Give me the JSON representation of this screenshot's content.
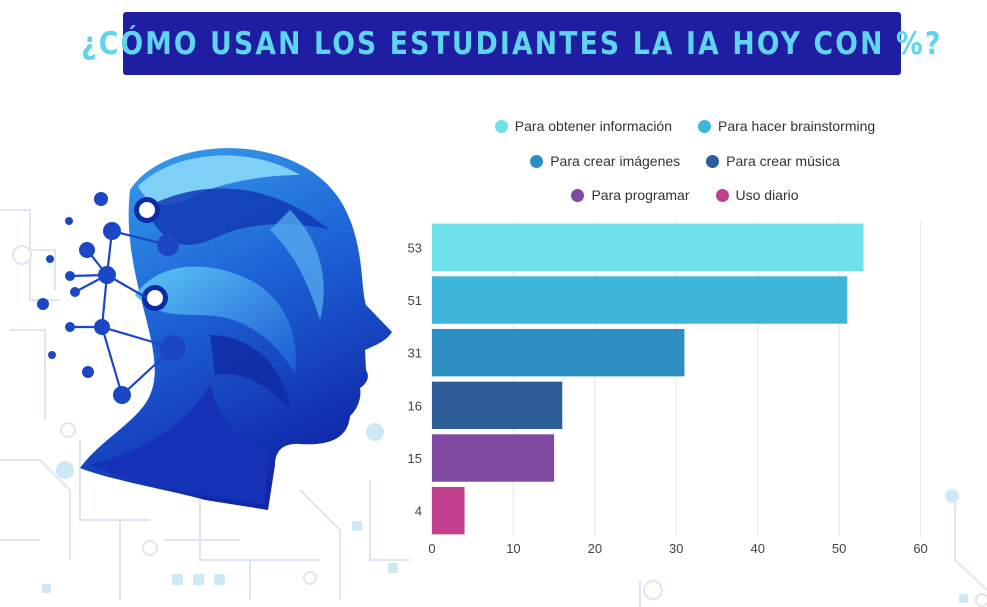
{
  "title": "¿CÓMO USAN LOS ESTUDIANTES LA IA HOY CON %?",
  "legend": {
    "rows": [
      [
        {
          "label": "Para obtener información",
          "color": "#6ee2ea"
        },
        {
          "label": "Para hacer brainstorming",
          "color": "#3db6d8"
        }
      ],
      [
        {
          "label": "Para crear imágenes",
          "color": "#2d8ec1"
        },
        {
          "label": "Para crear música",
          "color": "#2e5e97"
        }
      ],
      [
        {
          "label": "Para programar",
          "color": "#7f49a2"
        },
        {
          "label": "Uso diario",
          "color": "#c1408c"
        }
      ]
    ]
  },
  "chart_data": {
    "type": "bar",
    "orientation": "horizontal",
    "title": "¿CÓMO USAN LOS ESTUDIANTES LA IA HOY CON %?",
    "categories": [
      "53",
      "51",
      "31",
      "16",
      "15",
      "4"
    ],
    "series": [
      {
        "name": "Para obtener información",
        "value": 53,
        "color": "#6ee2ea"
      },
      {
        "name": "Para hacer brainstorming",
        "value": 51,
        "color": "#3db6d8"
      },
      {
        "name": "Para crear imágenes",
        "value": 31,
        "color": "#2d8ec1"
      },
      {
        "name": "Para crear música",
        "value": 16,
        "color": "#2e5e97"
      },
      {
        "name": "Para programar",
        "value": 15,
        "color": "#7f49a2"
      },
      {
        "name": "Uso diario",
        "value": 4,
        "color": "#c1408c"
      }
    ],
    "xlim": [
      0,
      63
    ],
    "xticks": [
      0,
      10,
      20,
      30,
      40,
      50,
      60
    ],
    "grid": true,
    "legend_position": "top"
  },
  "colors": {
    "title_bg": "#1f1ea3",
    "title_text": "#5fd4ee"
  },
  "illustration": {
    "icon": "ai-head-icon"
  }
}
